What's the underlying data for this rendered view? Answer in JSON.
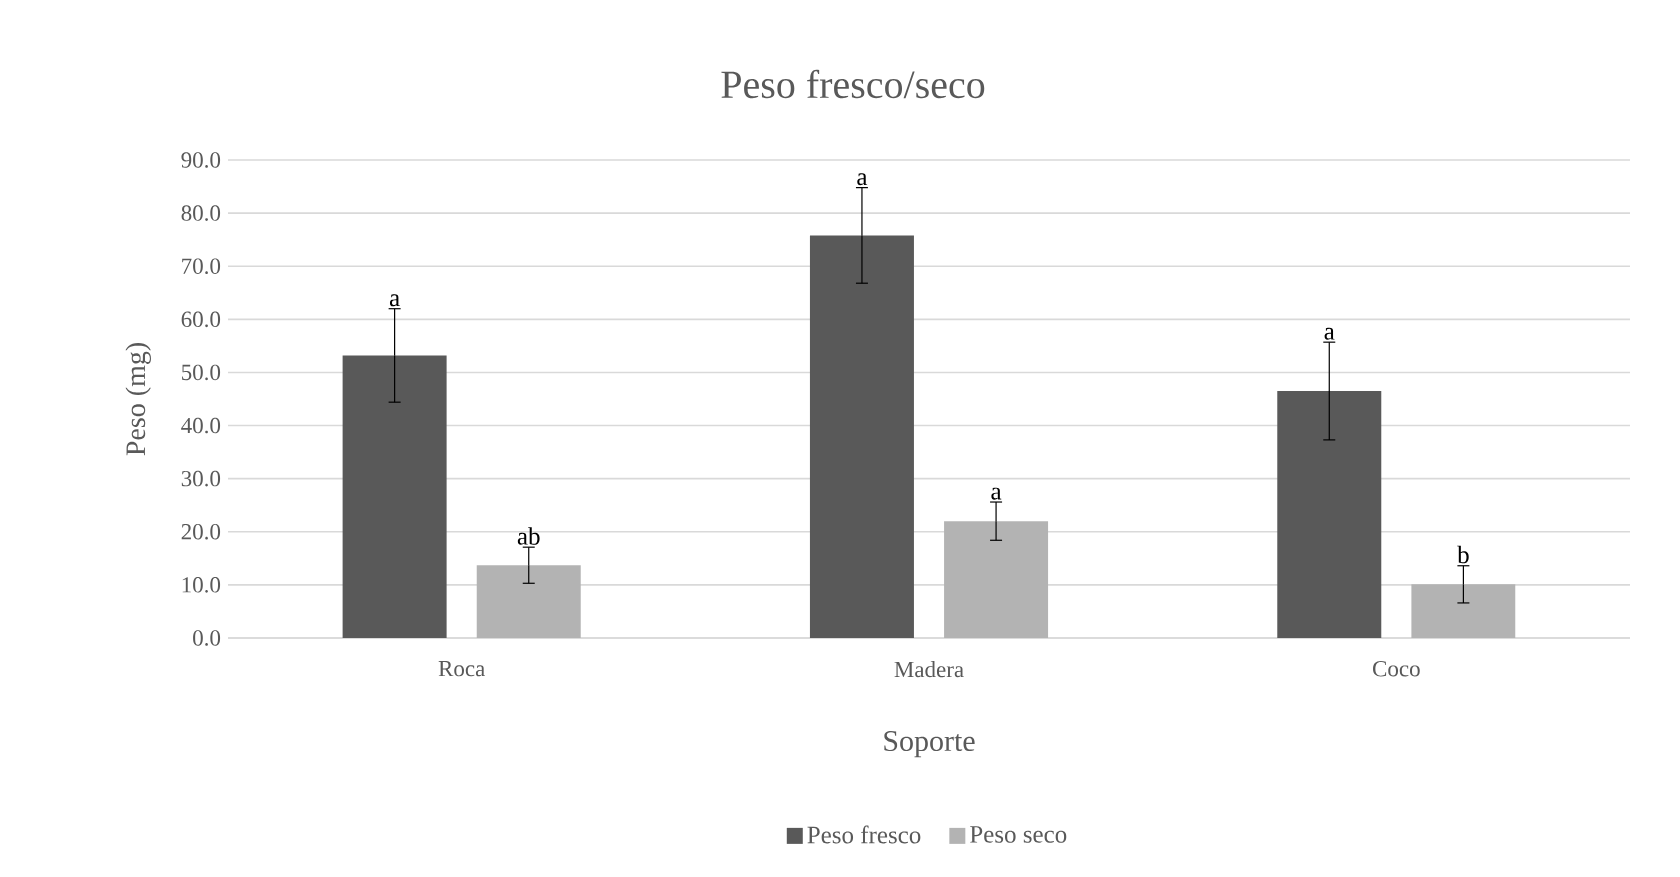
{
  "chart_data": {
    "type": "bar",
    "title": "Peso fresco/seco",
    "xlabel": "Soporte",
    "ylabel": "Peso (mg)",
    "categories": [
      "Roca",
      "Madera",
      "Coco"
    ],
    "series": [
      {
        "name": "Peso fresco",
        "color": "#595959",
        "values": [
          53.2,
          75.8,
          46.5
        ],
        "errors": [
          8.8,
          9.0,
          9.2
        ]
      },
      {
        "name": "Peso seco",
        "color": "#b3b3b3",
        "values": [
          13.7,
          22.0,
          10.1
        ],
        "errors": [
          3.4,
          3.6,
          3.5
        ]
      }
    ],
    "ylim": [
      0,
      90
    ],
    "yticks": [
      {
        "value": 0,
        "label": "0.0"
      },
      {
        "value": 10,
        "label": "10.0"
      },
      {
        "value": 20,
        "label": "20.0"
      },
      {
        "value": 30,
        "label": "30.0"
      },
      {
        "value": 40,
        "label": "40.0"
      },
      {
        "value": 50,
        "label": "50.0"
      },
      {
        "value": 60,
        "label": "60.0"
      },
      {
        "value": 70,
        "label": "70.0"
      },
      {
        "value": 80,
        "label": "80.0"
      },
      {
        "value": 90,
        "label": "90.0"
      }
    ],
    "annotations": [
      "a",
      "ab",
      "a",
      "a",
      "a",
      "b"
    ],
    "grid": "y",
    "legend": "bottom"
  }
}
